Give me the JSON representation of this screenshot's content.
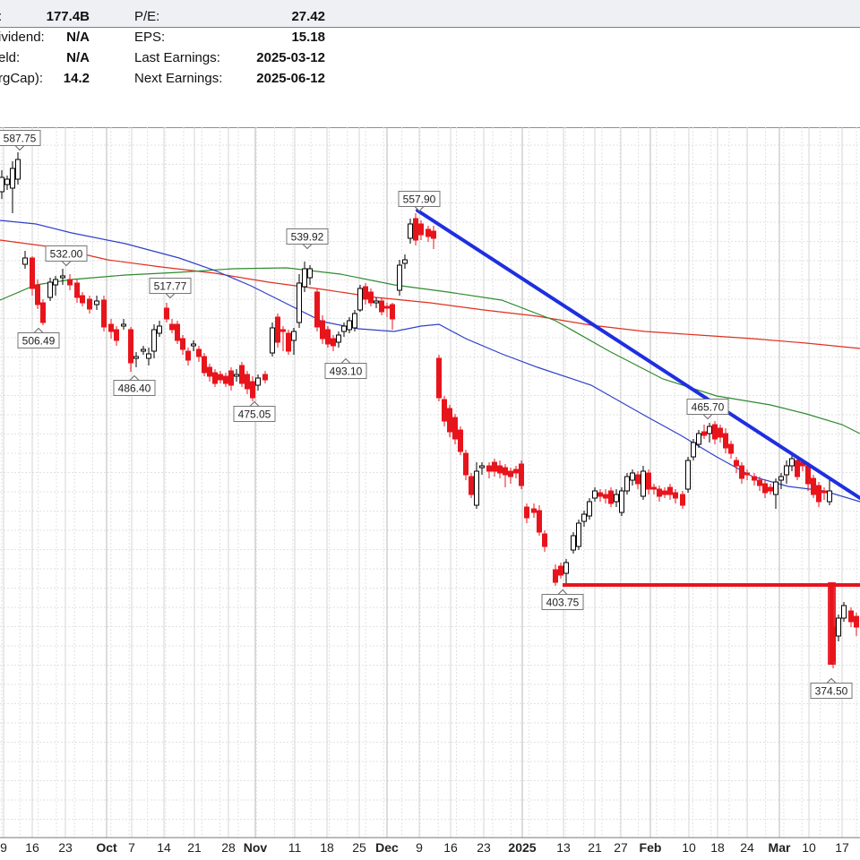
{
  "info": {
    "rows": [
      {
        "left_label": ":",
        "left_value": "177.4B",
        "right_label": "P/E:",
        "right_value": "27.42"
      },
      {
        "left_label": "ividend:",
        "left_value": "N/A",
        "right_label": "EPS:",
        "right_value": "15.18"
      },
      {
        "left_label": "eld:",
        "left_value": "N/A",
        "right_label": "Last Earnings:",
        "right_value": "2025-03-12"
      },
      {
        "left_label": "rgCap):",
        "left_value": "14.2",
        "right_label": "Next Earnings:",
        "right_value": "2025-06-12"
      }
    ]
  },
  "chart_data": {
    "type": "candlestick",
    "x_ticks": [
      {
        "label": "9",
        "major": false
      },
      {
        "label": "16",
        "major": false
      },
      {
        "label": "23",
        "major": false
      },
      {
        "label": "Oct",
        "major": true
      },
      {
        "label": "7",
        "major": false
      },
      {
        "label": "14",
        "major": false
      },
      {
        "label": "21",
        "major": false
      },
      {
        "label": "28",
        "major": false
      },
      {
        "label": "Nov",
        "major": true
      },
      {
        "label": "11",
        "major": false
      },
      {
        "label": "18",
        "major": false
      },
      {
        "label": "25",
        "major": false
      },
      {
        "label": "Dec",
        "major": true
      },
      {
        "label": "9",
        "major": false
      },
      {
        "label": "16",
        "major": false
      },
      {
        "label": "23",
        "major": false
      },
      {
        "label": "2025",
        "major": true
      },
      {
        "label": "13",
        "major": false
      },
      {
        "label": "21",
        "major": false
      },
      {
        "label": "27",
        "major": false
      },
      {
        "label": "Feb",
        "major": true
      },
      {
        "label": "10",
        "major": false
      },
      {
        "label": "18",
        "major": false
      },
      {
        "label": "24",
        "major": false
      },
      {
        "label": "Mar",
        "major": true
      },
      {
        "label": "10",
        "major": false
      },
      {
        "label": "17",
        "major": false
      }
    ],
    "annotations": [
      {
        "label": "587.75"
      },
      {
        "label": "532.00"
      },
      {
        "label": "506.49"
      },
      {
        "label": "517.77"
      },
      {
        "label": "486.40"
      },
      {
        "label": "475.05"
      },
      {
        "label": "539.92"
      },
      {
        "label": "493.10"
      },
      {
        "label": "557.90"
      },
      {
        "label": "465.70"
      },
      {
        "label": "403.75"
      },
      {
        "label": "374.50"
      }
    ],
    "colors": {
      "up": "#000000",
      "down": "#e8141c",
      "ma_blue": "#3040c8",
      "ma_green": "#2f8a2f",
      "ma_red": "#e03020",
      "trendline": "#1e2fe0",
      "support": "#e8141c",
      "grid": "#cfcfcf"
    }
  }
}
